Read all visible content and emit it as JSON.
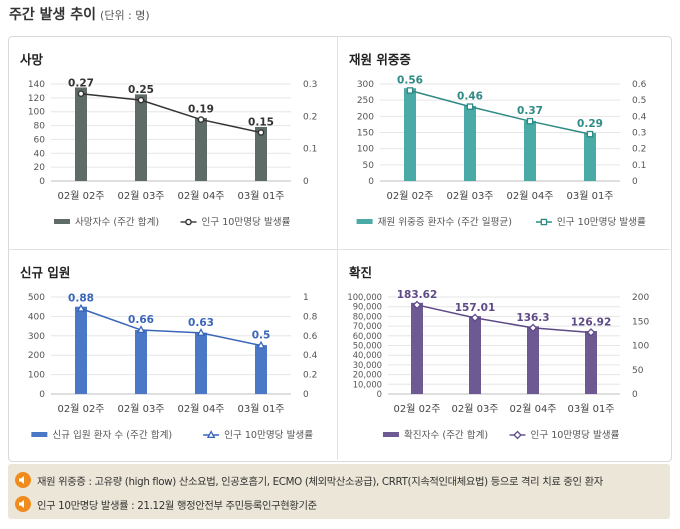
{
  "header": {
    "title": "주간 발생 추이",
    "unit": "(단위 : 명)"
  },
  "colors": {
    "deaths": "#5f6b66",
    "severe": "#4aaaa5",
    "admissions": "#4a78c6",
    "confirmed": "#6e5a93",
    "note_icon": "#f08c1f",
    "note_bg": "#ece6d8"
  },
  "chart_data": [
    {
      "type": "bar",
      "title": "사망",
      "categories": [
        "02월 02주",
        "02월 03주",
        "02월 04주",
        "03월 01주"
      ],
      "y_ticks": [
        "0",
        "20",
        "40",
        "60",
        "80",
        "100",
        "120",
        "140"
      ],
      "ylim": [
        0,
        140
      ],
      "y2_ticks": [
        "0",
        "0.1",
        "0.2",
        "0.3"
      ],
      "y2lim": [
        0,
        0.3
      ],
      "series": [
        {
          "name": "사망자수 (주간 합계)",
          "type": "bar",
          "axis": "left",
          "color": "#5f6b66",
          "values": [
            135,
            125,
            91,
            78
          ]
        },
        {
          "name": "인구 10만명당 발생률",
          "type": "line",
          "axis": "right",
          "color": "#333333",
          "marker": "circle",
          "values": [
            0.27,
            0.25,
            0.19,
            0.15
          ],
          "labels": [
            "0.27",
            "0.25",
            "0.19",
            "0.15"
          ]
        }
      ]
    },
    {
      "type": "bar",
      "title": "재원 위중증",
      "categories": [
        "02월 02주",
        "02월 03주",
        "02월 04주",
        "03월 01주"
      ],
      "y_ticks": [
        "0",
        "50",
        "100",
        "150",
        "200",
        "250",
        "300"
      ],
      "ylim": [
        0,
        300
      ],
      "y2_ticks": [
        "0",
        "0.1",
        "0.2",
        "0.3",
        "0.4",
        "0.5",
        "0.6"
      ],
      "y2lim": [
        0,
        0.6
      ],
      "series": [
        {
          "name": "재원 위중증 환자수 (주간 일평균)",
          "type": "bar",
          "axis": "left",
          "color": "#4aaaa5",
          "values": [
            287,
            232,
            186,
            149
          ]
        },
        {
          "name": "인구 10만명당 발생률",
          "type": "line",
          "axis": "right",
          "color": "#2e8a85",
          "marker": "square",
          "values": [
            0.56,
            0.46,
            0.37,
            0.29
          ],
          "labels": [
            "0.56",
            "0.46",
            "0.37",
            "0.29"
          ]
        }
      ]
    },
    {
      "type": "bar",
      "title": "신규 입원",
      "categories": [
        "02월 02주",
        "02월 03주",
        "02월 04주",
        "03월 01주"
      ],
      "y_ticks": [
        "0",
        "100",
        "200",
        "300",
        "400",
        "500"
      ],
      "ylim": [
        0,
        500
      ],
      "y2_ticks": [
        "0",
        "0.2",
        "0.4",
        "0.6",
        "0.8",
        "1"
      ],
      "y2lim": [
        0,
        1
      ],
      "series": [
        {
          "name": "신규 입원 환자 수 (주간 합계)",
          "type": "bar",
          "axis": "left",
          "color": "#4a78c6",
          "values": [
            450,
            330,
            316,
            252
          ]
        },
        {
          "name": "인구 10만명당 발생률",
          "type": "line",
          "axis": "right",
          "color": "#3a66b8",
          "marker": "triangle",
          "values": [
            0.88,
            0.66,
            0.63,
            0.5
          ],
          "labels": [
            "0.88",
            "0.66",
            "0.63",
            "0.5"
          ]
        }
      ]
    },
    {
      "type": "bar",
      "title": "확진",
      "categories": [
        "02월 02주",
        "02월 03주",
        "02월 04주",
        "03월 01주"
      ],
      "y_ticks": [
        "0",
        "10,000",
        "20,000",
        "30,000",
        "40,000",
        "50,000",
        "60,000",
        "70,000",
        "80,000",
        "90,000",
        "100,000"
      ],
      "ylim": [
        0,
        100000
      ],
      "y2_ticks": [
        "0",
        "50",
        "100",
        "150",
        "200"
      ],
      "y2lim": [
        0,
        200
      ],
      "series": [
        {
          "name": "확진자수 (주간 합계)",
          "type": "bar",
          "axis": "left",
          "color": "#6e5a93",
          "values": [
            94000,
            80300,
            69700,
            64900
          ]
        },
        {
          "name": "인구 10만명당 발생률",
          "type": "line",
          "axis": "right",
          "color": "#5e4a86",
          "marker": "diamond",
          "values": [
            183.62,
            157.01,
            136.3,
            126.92
          ],
          "labels": [
            "183.62",
            "157.01",
            "136.3",
            "126.92"
          ]
        }
      ]
    }
  ],
  "notes": [
    "재원 위중증 : 고유량 (high flow) 산소요법, 인공호흡기, ECMO (체외막산소공급), CRRT(지속적인대체요법) 등으로 격리 치료 중인 환자",
    "인구 10만명당 발생률 : 21.12월 행정안전부 주민등록인구현황기준"
  ]
}
